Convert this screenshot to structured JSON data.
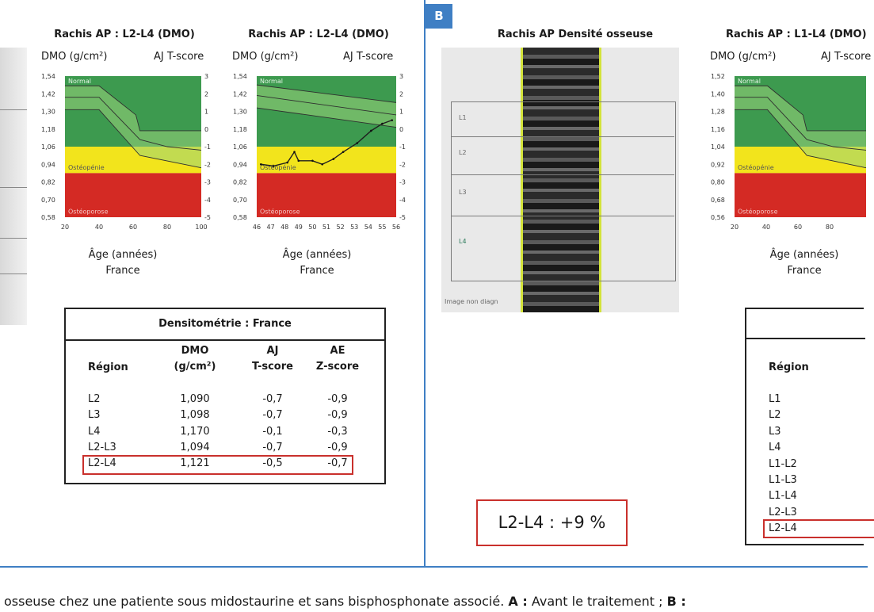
{
  "panel_b": {
    "badge": "B"
  },
  "charts": {
    "a1": {
      "title": "Rachis AP : L2-L4 (DMO)",
      "ylabel_left": "DMO (g/cm²)",
      "ylabel_right": "AJ T-score",
      "xlabel": "Âge (années)",
      "country": "France",
      "y_ticks": [
        "1,54",
        "1,42",
        "1,30",
        "1,18",
        "1,06",
        "0,94",
        "0,82",
        "0,70",
        "0,58"
      ],
      "t_ticks": [
        "3",
        "2",
        "1",
        "0",
        "-1",
        "-2",
        "-3",
        "-4",
        "-5"
      ],
      "x_ticks": [
        "20",
        "40",
        "60",
        "80",
        "100"
      ],
      "zones": [
        "Normal",
        "Ostéopénie",
        "Ostéoporose"
      ]
    },
    "a2": {
      "title": "Rachis AP : L2-L4 (DMO)",
      "ylabel_left": "DMO (g/cm²)",
      "ylabel_right": "AJ T-score",
      "xlabel": "Âge (années)",
      "country": "France",
      "y_ticks": [
        "1,54",
        "1,42",
        "1,30",
        "1,18",
        "1,06",
        "0,94",
        "0,82",
        "0,70",
        "0,58"
      ],
      "t_ticks": [
        "3",
        "2",
        "1",
        "0",
        "-1",
        "-2",
        "-3",
        "-4",
        "-5"
      ],
      "x_ticks": [
        "46",
        "47",
        "48",
        "49",
        "50",
        "51",
        "52",
        "53",
        "54",
        "55",
        "56"
      ],
      "zones": [
        "Normal",
        "Ostéopénie",
        "Ostéoporose"
      ]
    },
    "b1": {
      "title": "Rachis AP : L1-L4 (DMO)",
      "ylabel_left": "DMO (g/cm²)",
      "ylabel_right": "AJ T-score",
      "xlabel": "Âge (années)",
      "country": "France",
      "y_ticks": [
        "1,52",
        "1,40",
        "1,28",
        "1,16",
        "1,04",
        "0,92",
        "0,80",
        "0,68",
        "0,56"
      ],
      "x_ticks": [
        "20",
        "40",
        "60",
        "80"
      ],
      "zones": [
        "Normal",
        "Ostéopénie",
        "Ostéoporose"
      ]
    }
  },
  "scan": {
    "title": "Rachis AP Densité osseuse",
    "levels": [
      "L1",
      "L2",
      "L3",
      "L4"
    ],
    "image_label": "Image non diagn"
  },
  "table_a": {
    "caption": "Densitométrie : France",
    "headers": {
      "region": "Région",
      "dmo_1": "DMO",
      "dmo_2": "(g/cm²)",
      "aj_1": "AJ",
      "aj_2": "T-score",
      "ae_1": "AE",
      "ae_2": "Z-score"
    },
    "rows": [
      {
        "region": "L2",
        "dmo": "1,090",
        "t": "-0,7",
        "z": "-0,9"
      },
      {
        "region": "L3",
        "dmo": "1,098",
        "t": "-0,7",
        "z": "-0,9"
      },
      {
        "region": "L4",
        "dmo": "1,170",
        "t": "-0,1",
        "z": "-0,3"
      },
      {
        "region": "L2-L3",
        "dmo": "1,094",
        "t": "-0,7",
        "z": "-0,9"
      },
      {
        "region": "L2-L4",
        "dmo": "1,121",
        "t": "-0,5",
        "z": "-0,7"
      }
    ]
  },
  "table_b": {
    "header_region": "Région",
    "rows": [
      "L1",
      "L2",
      "L3",
      "L4",
      "L1-L2",
      "L1-L3",
      "L1-L4",
      "L2-L3",
      "L2-L4"
    ]
  },
  "result_box": "L2-L4 : +9 %",
  "caption": {
    "part1": "osseuse chez une patiente sous midostaurine et sans bisphosphonate associé. ",
    "a_label": "A :",
    "part2": " Avant le traitement ; ",
    "b_label": "B :"
  },
  "colors": {
    "normal": "#3d9a4f",
    "normal_band": "#5ab56a",
    "osteopenie": "#f2e41c",
    "osteoporose": "#d42a24",
    "frame": "#3f7fc4",
    "highlight": "#c9302c"
  }
}
